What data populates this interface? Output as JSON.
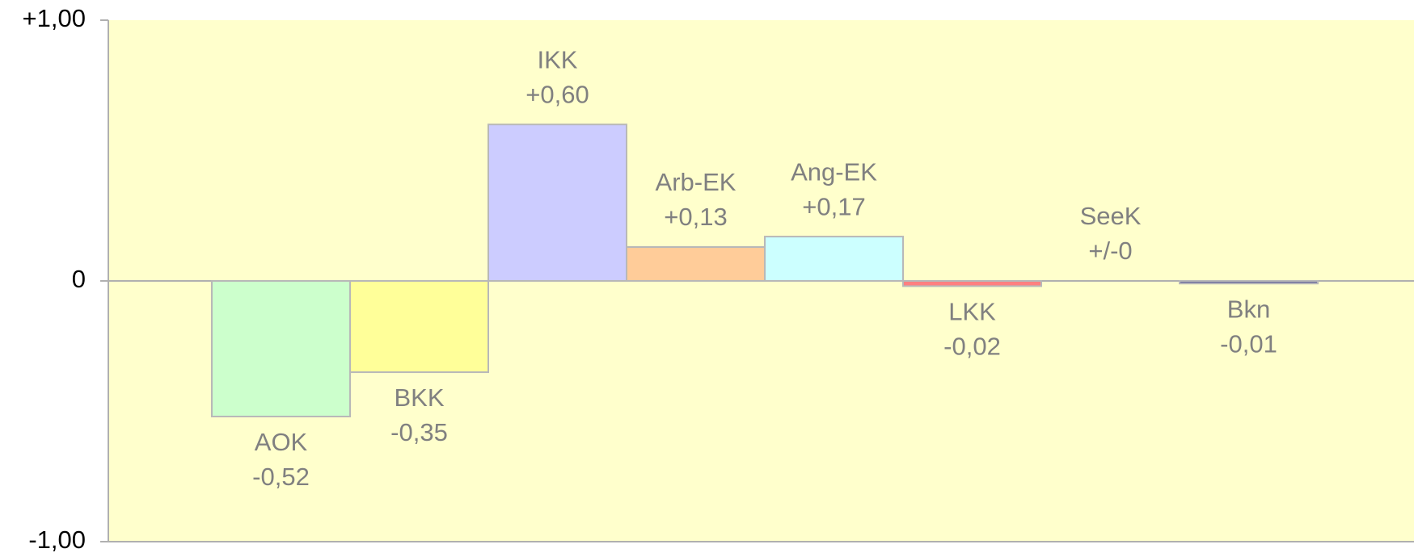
{
  "chart_data": {
    "type": "bar",
    "categories": [
      "AOK",
      "BKK",
      "IKK",
      "Arb-EK",
      "Ang-EK",
      "LKK",
      "SeeK",
      "Bkn"
    ],
    "values": [
      -0.52,
      -0.35,
      0.6,
      0.13,
      0.17,
      -0.02,
      0,
      -0.01
    ],
    "value_labels": [
      "-0,52",
      "-0,35",
      "+0,60",
      "+0,13",
      "+0,17",
      "-0,02",
      "+/-0",
      "-0,01"
    ],
    "colors": [
      "#ccffcc",
      "#ffff99",
      "#ccccff",
      "#ffcc99",
      "#ccffff",
      "#ff8080",
      "#cccccc",
      "#666699"
    ],
    "ylim": [
      -1,
      1
    ],
    "yticks": [
      {
        "value": 1,
        "label": "+1,00"
      },
      0,
      {
        "value": -1,
        "label": "-1,00"
      }
    ],
    "background": "#ffffcc"
  }
}
